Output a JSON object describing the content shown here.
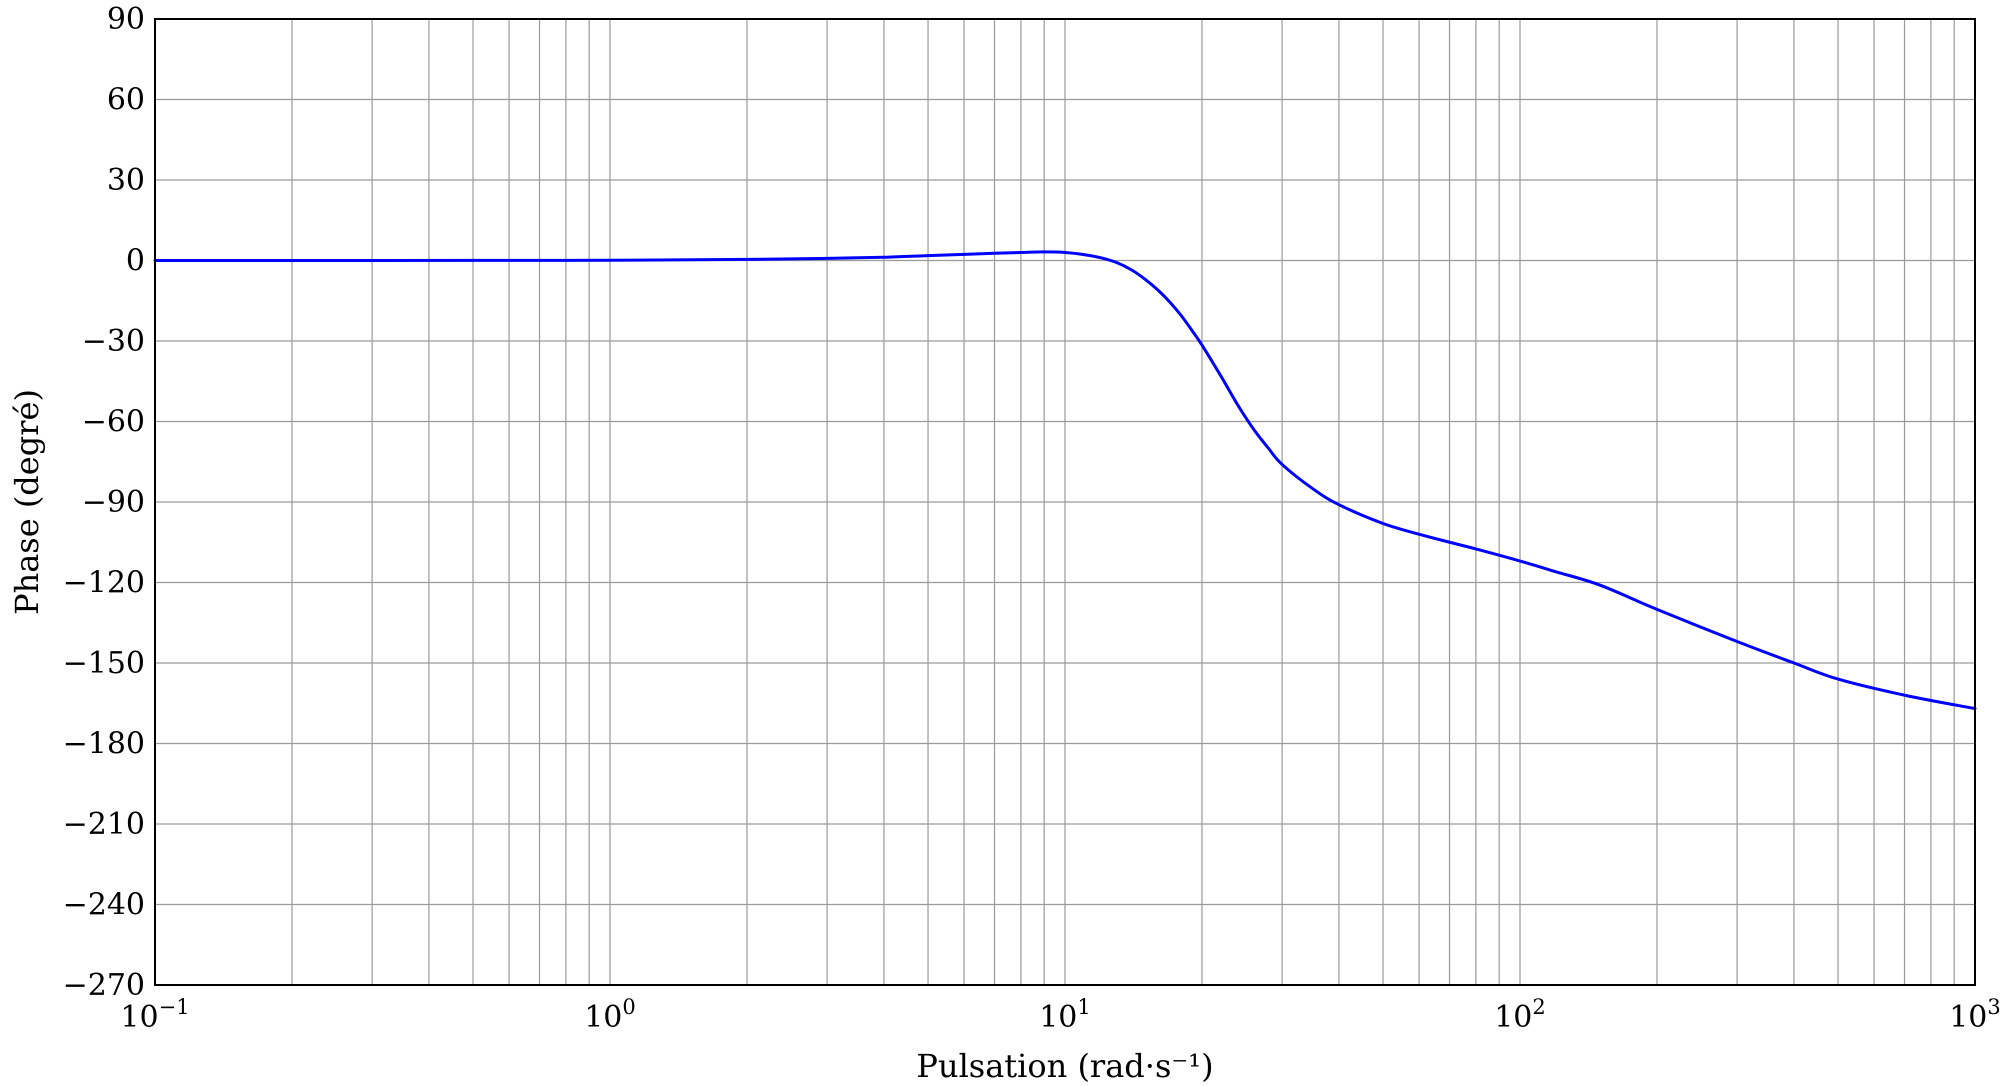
{
  "chart_data": {
    "type": "line",
    "xscale": "log",
    "xlim": [
      0.1,
      1000
    ],
    "ylim": [
      -270,
      90
    ],
    "grid": true,
    "xlabel": "Pulsation (rad·s⁻¹)",
    "ylabel": "Phase (degré)",
    "xticks": [
      {
        "base": "10",
        "exp": "−1",
        "value": 0.1
      },
      {
        "base": "10",
        "exp": "0",
        "value": 1
      },
      {
        "base": "10",
        "exp": "1",
        "value": 10
      },
      {
        "base": "10",
        "exp": "2",
        "value": 100
      },
      {
        "base": "10",
        "exp": "3",
        "value": 1000
      }
    ],
    "yticks": [
      {
        "label": "90",
        "value": 90
      },
      {
        "label": "60",
        "value": 60
      },
      {
        "label": "30",
        "value": 30
      },
      {
        "label": "0",
        "value": 0
      },
      {
        "label": "−30",
        "value": -30
      },
      {
        "label": "−60",
        "value": -60
      },
      {
        "label": "−90",
        "value": -90
      },
      {
        "label": "−120",
        "value": -120
      },
      {
        "label": "−150",
        "value": -150
      },
      {
        "label": "−180",
        "value": -180
      },
      {
        "label": "−210",
        "value": -210
      },
      {
        "label": "−240",
        "value": -240
      },
      {
        "label": "−270",
        "value": -270
      }
    ],
    "series": [
      {
        "color": "#0000ff",
        "x": [
          0.1,
          0.2,
          0.5,
          1,
          2,
          3,
          4,
          5,
          6,
          7,
          8,
          9,
          10,
          11,
          12,
          13,
          14,
          15,
          16,
          17,
          18,
          19,
          20,
          22,
          24,
          26,
          28,
          30,
          35,
          40,
          50,
          60,
          70,
          80,
          100,
          120,
          150,
          200,
          300,
          400,
          500,
          700,
          1000
        ],
        "y": [
          0,
          0,
          0.05,
          0.1,
          0.4,
          0.8,
          1.2,
          1.8,
          2.3,
          2.7,
          3.0,
          3.2,
          3.0,
          2.2,
          1.0,
          -0.8,
          -3.5,
          -7,
          -11,
          -15.5,
          -20.5,
          -26,
          -31.5,
          -43,
          -54,
          -63,
          -70,
          -76,
          -85,
          -91,
          -98,
          -102,
          -105,
          -107.5,
          -112,
          -116,
          -121,
          -130,
          -142,
          -150,
          -156,
          -162,
          -167
        ]
      }
    ]
  }
}
